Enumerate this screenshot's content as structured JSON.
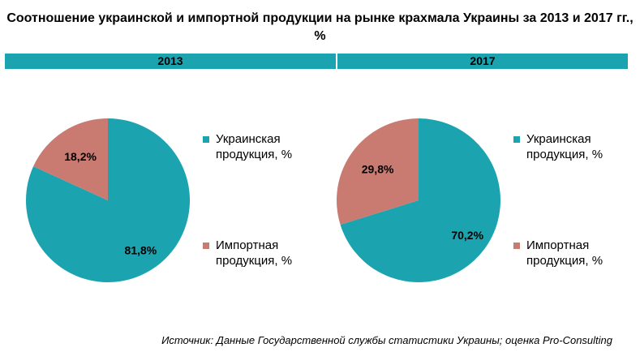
{
  "title": "Соотношение украинской и импортной продукции на рынке крахмала Украины за 2013 и 2017 гг., %",
  "colors": {
    "header_bar": "#1ba3b0",
    "ukrainian": "#1ba3b0",
    "import": "#c97b72"
  },
  "chart_data": [
    {
      "type": "pie",
      "title": "2013",
      "labels": [
        "Украинская продукция, %",
        "Импортная продукция, %"
      ],
      "values": [
        81.8,
        18.2
      ],
      "value_labels": [
        "81,8%",
        "18,2%"
      ],
      "legend_position": "right"
    },
    {
      "type": "pie",
      "title": "2017",
      "labels": [
        "Украинская продукция, %",
        "Импортная продукция, %"
      ],
      "values": [
        70.2,
        29.8
      ],
      "value_labels": [
        "70,2%",
        "29,8%"
      ],
      "legend_position": "right"
    }
  ],
  "legend": {
    "ukrainian_line1": "Украинская",
    "ukrainian_line2": "продукция,  %",
    "import_line1": "Импортная",
    "import_line2": "продукция,  %"
  },
  "source": "Источник: Данные Государственной службы статистики Украины; оценка Pro-Consulting"
}
